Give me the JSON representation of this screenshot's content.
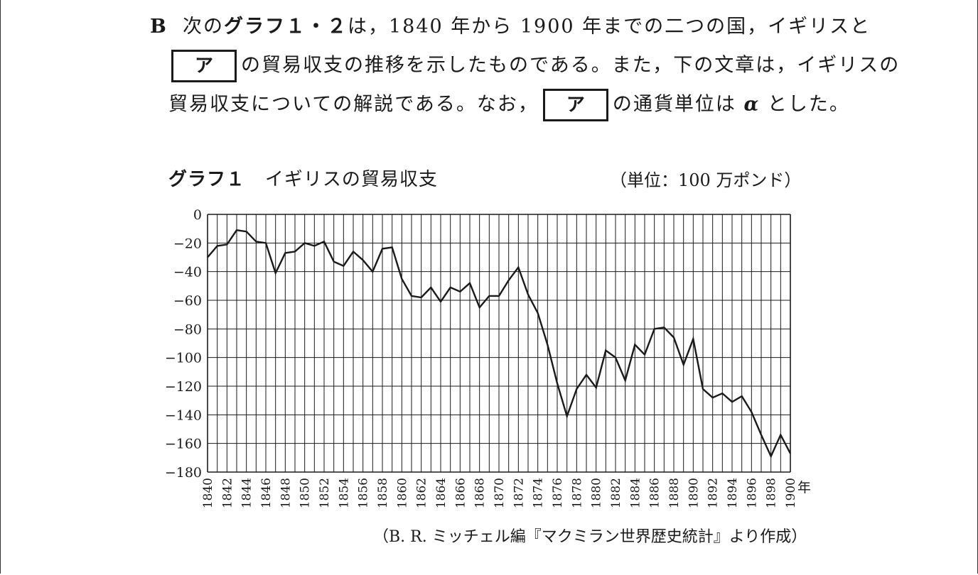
{
  "question": {
    "line1": {
      "label": "B",
      "pre": "次の",
      "graph_ref": "グラフ１・２",
      "post": "は，1840 年から 1900 年までの二つの国，イギリスと"
    },
    "line2": {
      "box": "ア",
      "text": "の貿易収支の推移を示したものである。また，下の文章は，イギリスの"
    },
    "line3": {
      "pre": "貿易収支についての解説である。なお，",
      "box": "ア",
      "mid": "の通貨単位は",
      "alpha": "α",
      "post": "とした。"
    }
  },
  "graph": {
    "label": "グラフ１",
    "title": "イギリスの貿易収支",
    "unit": "（単位：100 万ポンド）",
    "x_unit_label": "年",
    "source": "（B. R. ミッチェル編『マクミラン世界歴史統計』より作成）"
  },
  "chart_data": {
    "type": "line",
    "title": "イギリスの貿易収支",
    "ylabel": "（単位：100 万ポンド）",
    "xlabel": "年",
    "xlim": [
      1840,
      1900
    ],
    "ylim": [
      -180,
      0
    ],
    "yticks": [
      0,
      -20,
      -40,
      -60,
      -80,
      -100,
      -120,
      -140,
      -160,
      -180
    ],
    "ytick_labels": [
      "0",
      "−20",
      "−40",
      "−60",
      "−80",
      "−100",
      "−120",
      "−140",
      "−160",
      "−180"
    ],
    "xticks": [
      1840,
      1842,
      1844,
      1846,
      1848,
      1850,
      1852,
      1854,
      1856,
      1858,
      1860,
      1862,
      1864,
      1866,
      1868,
      1870,
      1872,
      1874,
      1876,
      1878,
      1880,
      1882,
      1884,
      1886,
      1888,
      1890,
      1892,
      1894,
      1896,
      1898,
      1900
    ],
    "grid": true,
    "line_color": "#1a1a1a",
    "x": [
      1840,
      1841,
      1842,
      1843,
      1844,
      1845,
      1846,
      1847,
      1848,
      1849,
      1850,
      1851,
      1852,
      1853,
      1854,
      1855,
      1856,
      1857,
      1858,
      1859,
      1860,
      1861,
      1862,
      1863,
      1864,
      1865,
      1866,
      1867,
      1868,
      1869,
      1870,
      1871,
      1872,
      1873,
      1874,
      1875,
      1876,
      1877,
      1878,
      1879,
      1880,
      1881,
      1882,
      1883,
      1884,
      1885,
      1886,
      1887,
      1888,
      1889,
      1890,
      1891,
      1892,
      1893,
      1894,
      1895,
      1896,
      1897,
      1898,
      1899,
      1900
    ],
    "series": [
      {
        "values": [
          -30,
          -22,
          -21,
          -11,
          -12,
          -19,
          -20,
          -41,
          -27,
          -26,
          -20,
          -22,
          -19,
          -33,
          -36,
          -26,
          -32,
          -40,
          -24,
          -23,
          -45,
          -57,
          -58,
          -51,
          -61,
          -51,
          -54,
          -48,
          -65,
          -57,
          -57,
          -46,
          -37,
          -56,
          -69,
          -91,
          -118,
          -141,
          -122,
          -112,
          -121,
          -95,
          -100,
          -116,
          -91,
          -98,
          -80,
          -79,
          -86,
          -105,
          -87,
          -122,
          -128,
          -125,
          -131,
          -127,
          -138,
          -154,
          -169,
          -154,
          -167
        ]
      }
    ]
  }
}
